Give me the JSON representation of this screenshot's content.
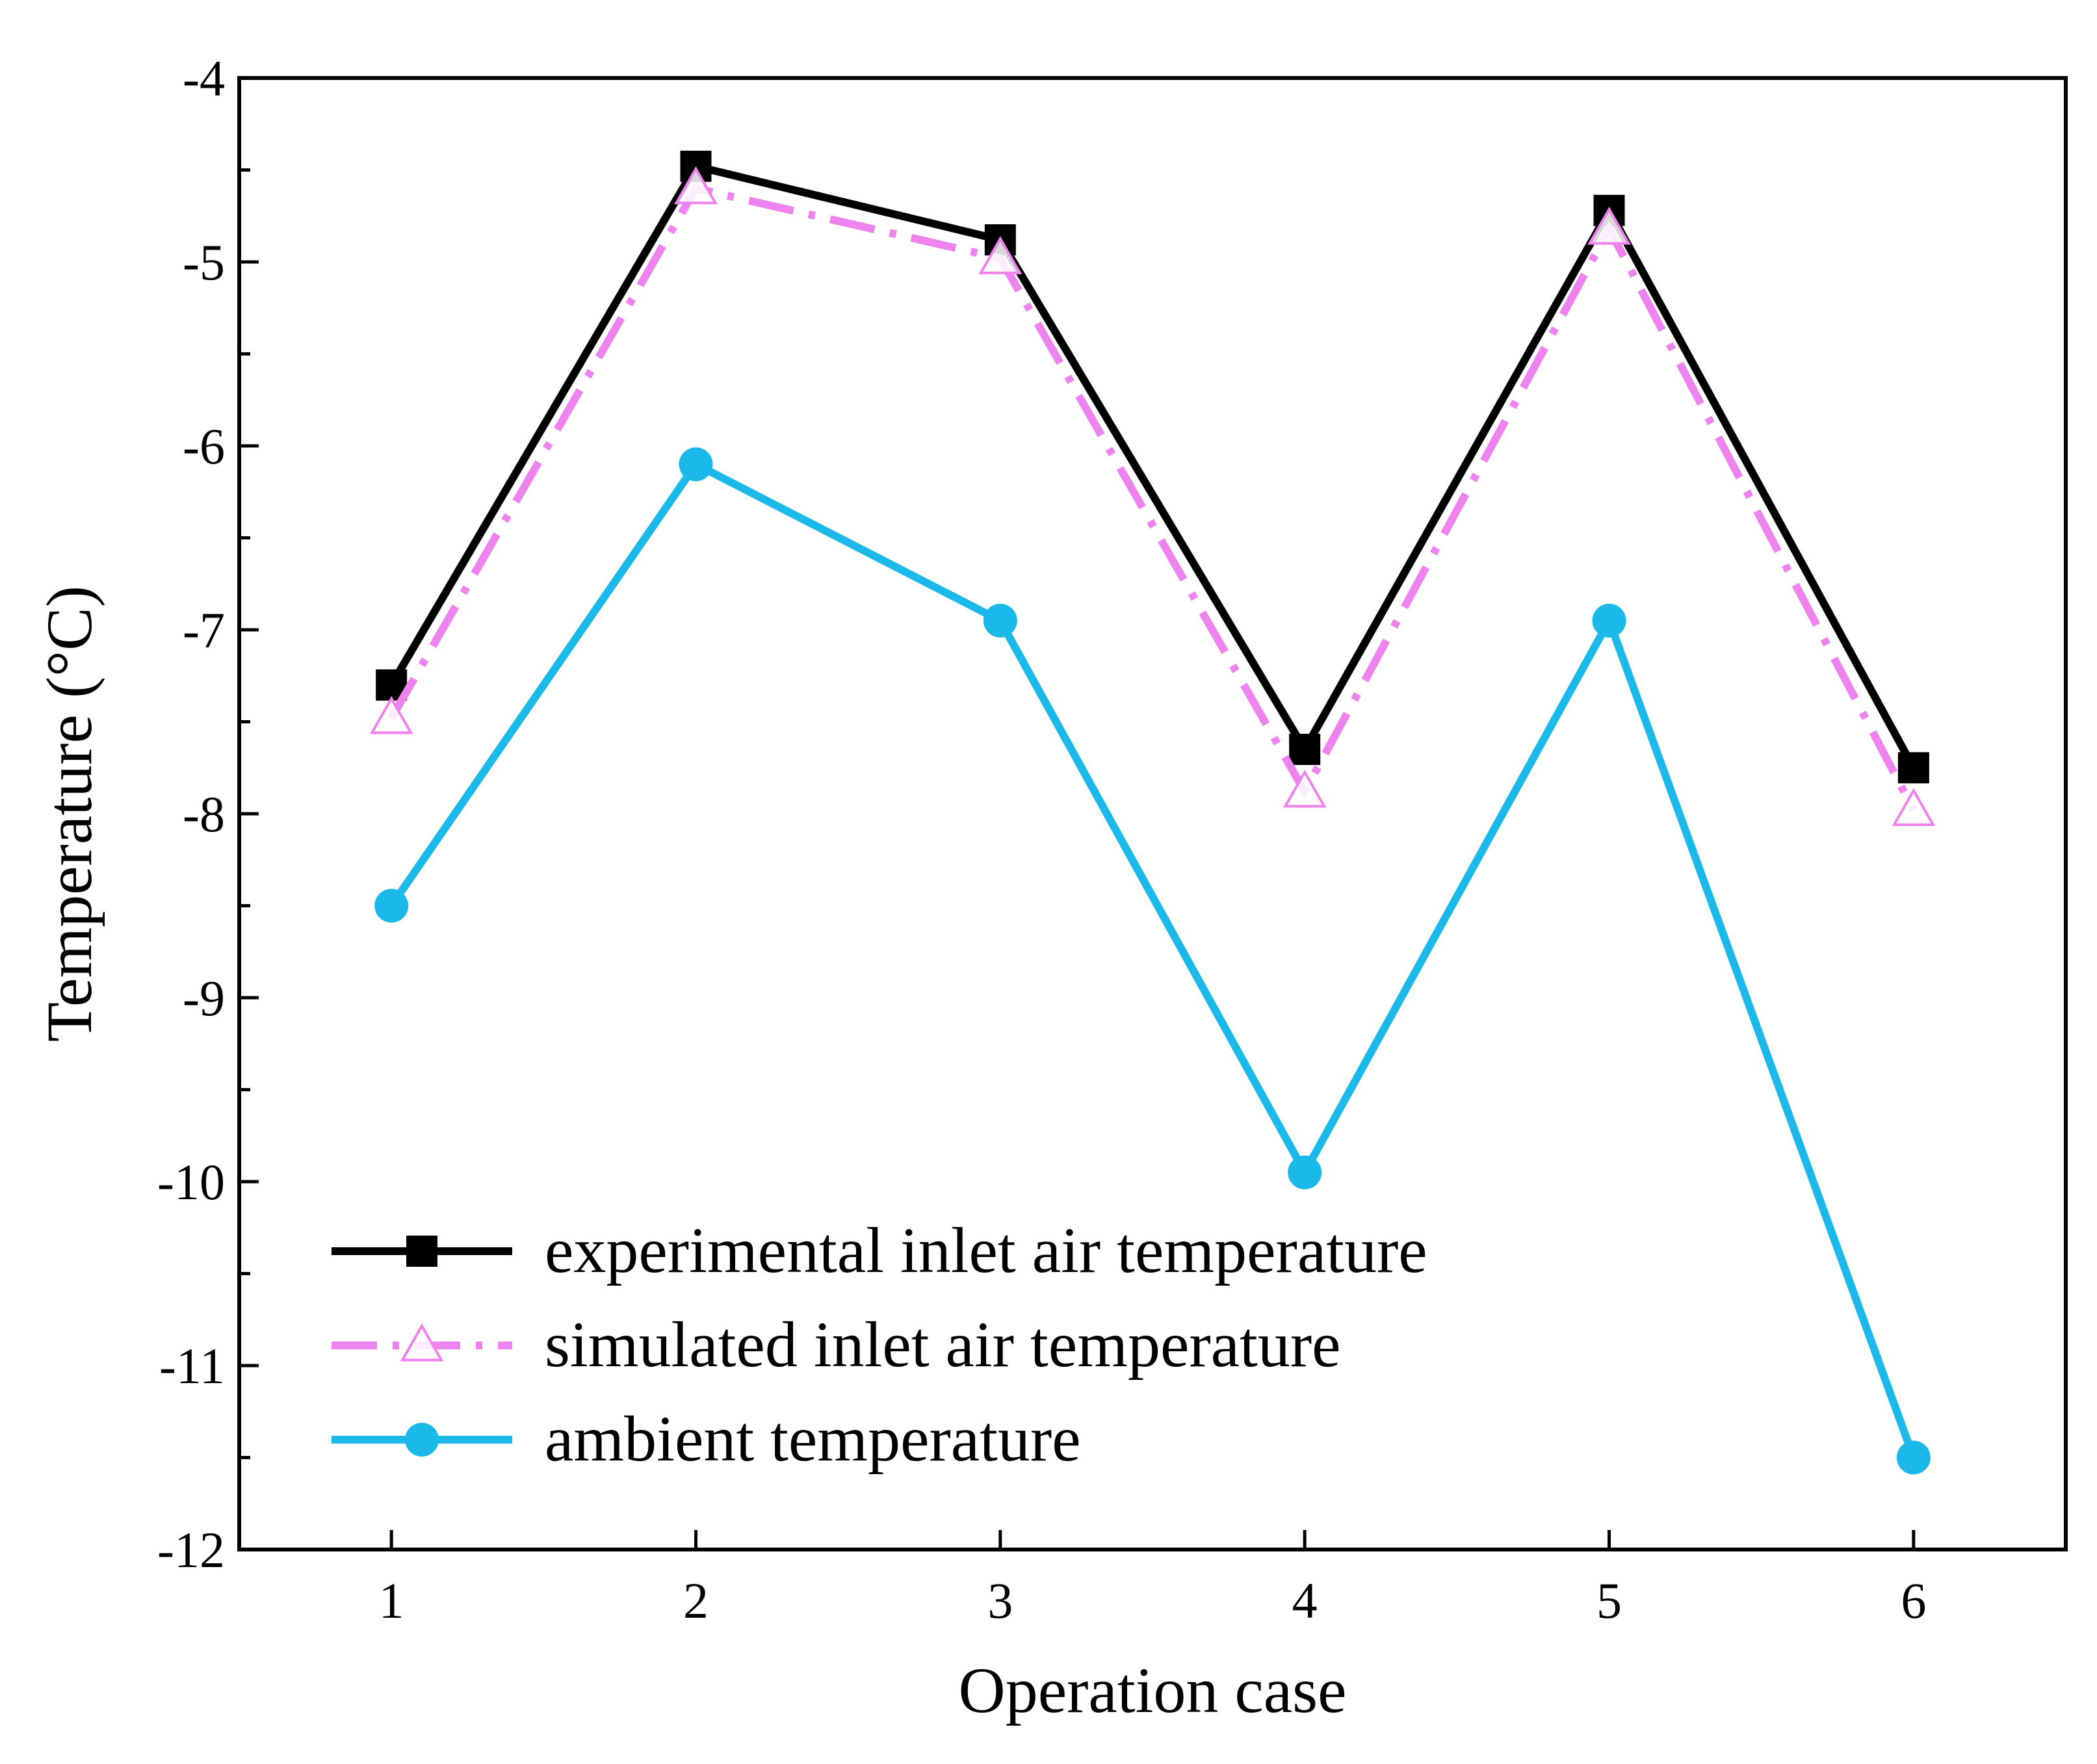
{
  "chart_data": {
    "type": "line",
    "title": "",
    "xlabel": "Operation case",
    "ylabel": "Temperature (°C)",
    "x": [
      1,
      2,
      3,
      4,
      5,
      6
    ],
    "xticks": [
      "1",
      "2",
      "3",
      "4",
      "5",
      "6"
    ],
    "xlim": [
      0.5,
      6.5
    ],
    "ylim": [
      -12,
      -4
    ],
    "yticks": [
      "-4",
      "-5",
      "-6",
      "-7",
      "-8",
      "-9",
      "-10",
      "-11",
      "-12"
    ],
    "ytick_values": [
      -4,
      -5,
      -6,
      -7,
      -8,
      -9,
      -10,
      -11,
      -12
    ],
    "grid": false,
    "legend_position": "bottom-left",
    "series": [
      {
        "name": "experimental inlet air temperature",
        "values": [
          -7.3,
          -4.48,
          -4.88,
          -7.65,
          -4.72,
          -7.75
        ],
        "color": "#000000",
        "marker": "square",
        "line_style": "solid"
      },
      {
        "name": "simulated inlet air temperature",
        "values": [
          -7.48,
          -4.6,
          -4.98,
          -7.88,
          -4.82,
          -7.98
        ],
        "color": "#ee82ee",
        "marker": "triangle-open",
        "line_style": "dash-dot"
      },
      {
        "name": "ambient temperature",
        "values": [
          -8.5,
          -6.1,
          -6.95,
          -9.95,
          -6.95,
          -11.5
        ],
        "color": "#1bb9ea",
        "marker": "circle",
        "line_style": "solid"
      }
    ]
  }
}
